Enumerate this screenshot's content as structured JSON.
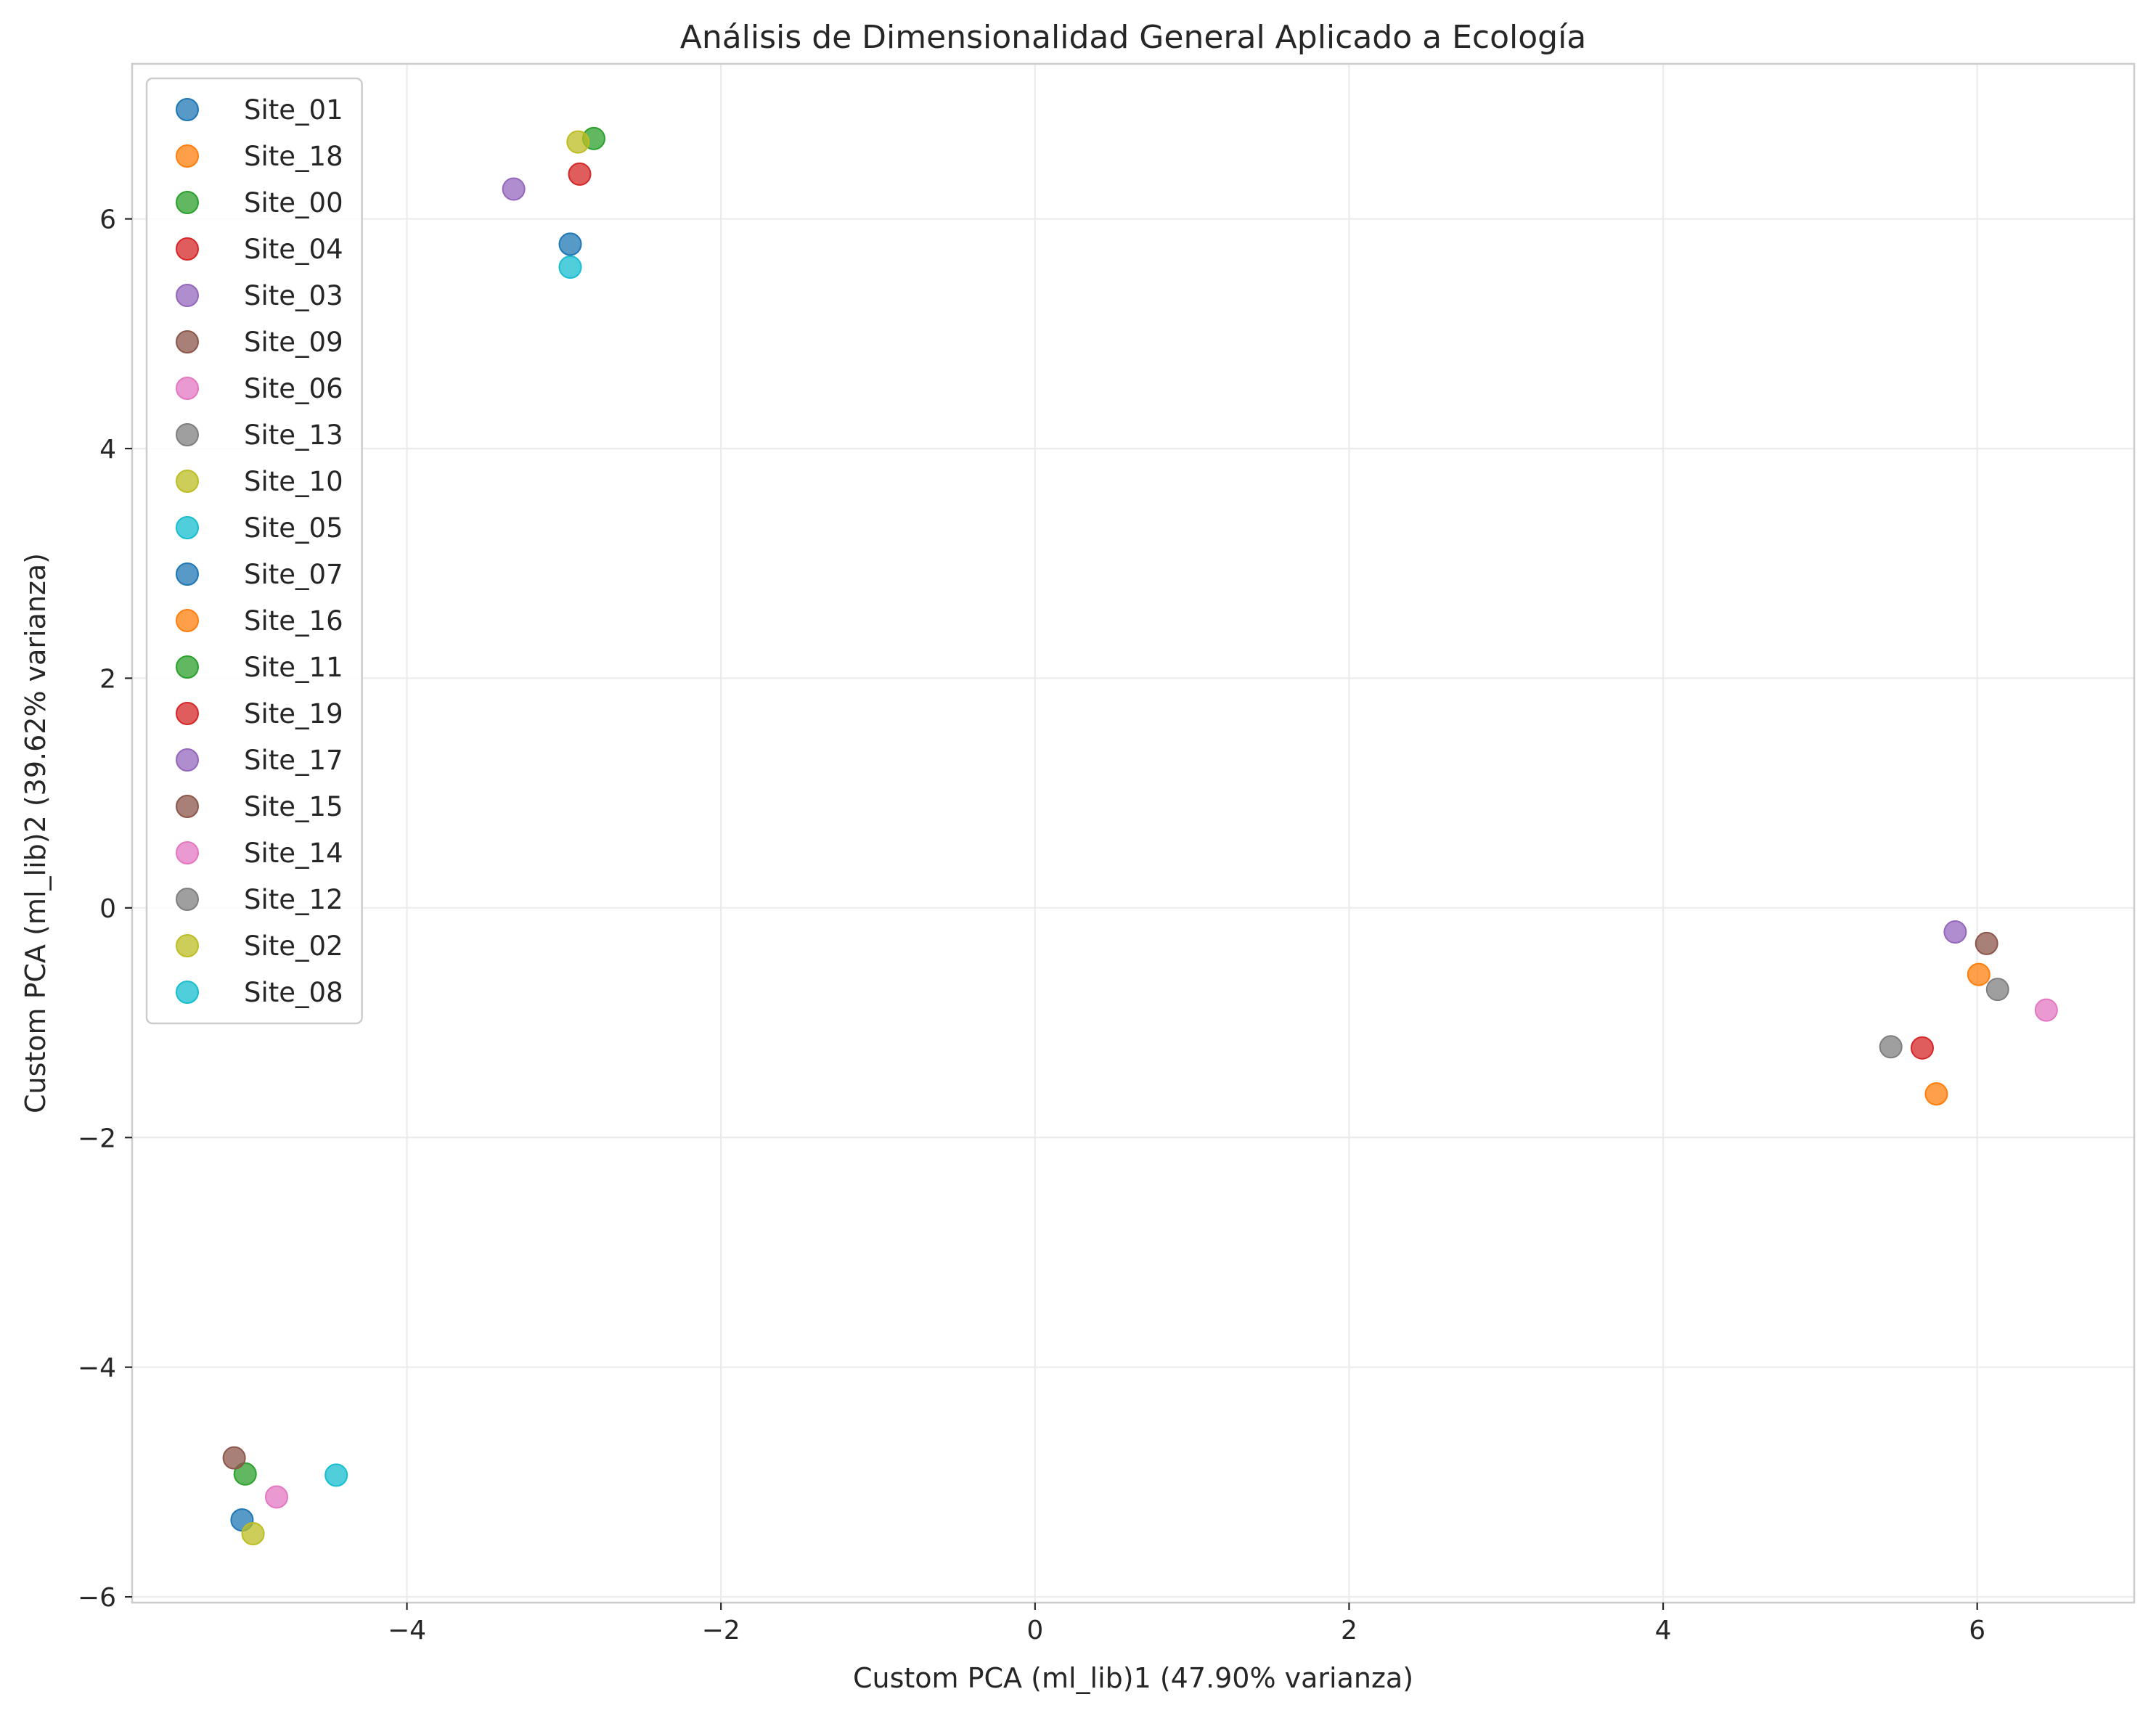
{
  "chart_data": {
    "type": "scatter",
    "title": "Análisis de Dimensionalidad General Aplicado a Ecología",
    "xlabel": "Custom PCA (ml_lib)1 (47.90% varianza)",
    "ylabel": "Custom PCA (ml_lib)2 (39.62% varianza)",
    "xlim": [
      -5.75,
      7.0
    ],
    "ylim": [
      -6.05,
      7.35
    ],
    "xticks": [
      -4,
      -2,
      0,
      2,
      4,
      6
    ],
    "yticks": [
      -6,
      -4,
      -2,
      0,
      2,
      4,
      6
    ],
    "xtick_labels": [
      "−4",
      "−2",
      "0",
      "2",
      "4",
      "6"
    ],
    "ytick_labels": [
      "−6",
      "−4",
      "−2",
      "0",
      "2",
      "4",
      "6"
    ],
    "grid": true,
    "legend_position": "upper-left",
    "series": [
      {
        "name": "Site_01",
        "color": "#1f77b4",
        "x": -5.05,
        "y": -5.33
      },
      {
        "name": "Site_18",
        "color": "#ff7f0e",
        "x": 5.74,
        "y": -1.62
      },
      {
        "name": "Site_00",
        "color": "#2ca02c",
        "x": -2.81,
        "y": 6.7
      },
      {
        "name": "Site_04",
        "color": "#d62728",
        "x": -2.9,
        "y": 6.39
      },
      {
        "name": "Site_03",
        "color": "#9467bd",
        "x": -3.32,
        "y": 6.26
      },
      {
        "name": "Site_09",
        "color": "#8c564b",
        "x": 6.06,
        "y": -0.31
      },
      {
        "name": "Site_06",
        "color": "#e377c2",
        "x": -4.83,
        "y": -5.13
      },
      {
        "name": "Site_13",
        "color": "#7f7f7f",
        "x": 5.45,
        "y": -1.21
      },
      {
        "name": "Site_10",
        "color": "#bcbd22",
        "x": -2.91,
        "y": 6.67
      },
      {
        "name": "Site_05",
        "color": "#17becf",
        "x": -2.96,
        "y": 5.58
      },
      {
        "name": "Site_07",
        "color": "#1f77b4",
        "x": -2.96,
        "y": 5.78
      },
      {
        "name": "Site_16",
        "color": "#ff7f0e",
        "x": 6.01,
        "y": -0.58
      },
      {
        "name": "Site_11",
        "color": "#2ca02c",
        "x": -5.03,
        "y": -4.93
      },
      {
        "name": "Site_19",
        "color": "#d62728",
        "x": 5.65,
        "y": -1.22
      },
      {
        "name": "Site_17",
        "color": "#9467bd",
        "x": 5.86,
        "y": -0.21
      },
      {
        "name": "Site_15",
        "color": "#8c564b",
        "x": -5.1,
        "y": -4.79
      },
      {
        "name": "Site_14",
        "color": "#e377c2",
        "x": 6.44,
        "y": -0.89
      },
      {
        "name": "Site_12",
        "color": "#7f7f7f",
        "x": 6.13,
        "y": -0.71
      },
      {
        "name": "Site_02",
        "color": "#bcbd22",
        "x": -4.98,
        "y": -5.45
      },
      {
        "name": "Site_08",
        "color": "#17becf",
        "x": -4.45,
        "y": -4.94
      }
    ]
  }
}
